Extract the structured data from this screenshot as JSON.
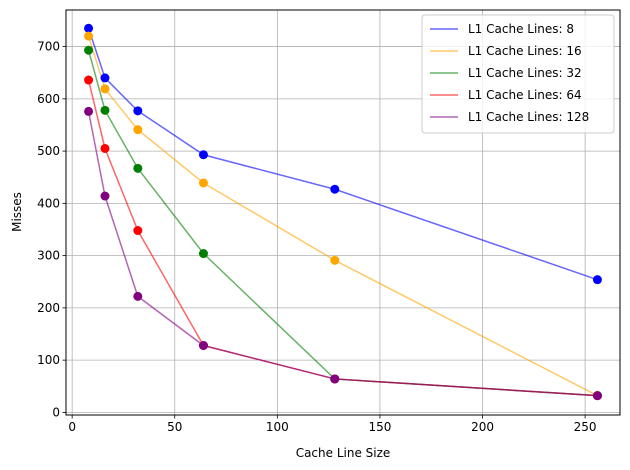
{
  "chart_data": {
    "type": "line",
    "title": "",
    "xlabel": "Cache Line Size",
    "ylabel": "Misses",
    "xlim": [
      -3,
      267
    ],
    "ylim": [
      -5,
      770
    ],
    "xticks": [
      0,
      50,
      100,
      150,
      200,
      250
    ],
    "yticks": [
      0,
      100,
      200,
      300,
      400,
      500,
      600,
      700
    ],
    "grid": true,
    "legend_position": "top-right",
    "x": [
      8,
      16,
      32,
      64,
      128,
      256
    ],
    "series": [
      {
        "name": "L1 Cache Lines: 8",
        "color": "#0000ff",
        "values": [
          735,
          640,
          577,
          493,
          427,
          254
        ]
      },
      {
        "name": "L1 Cache Lines: 16",
        "color": "#ffa500",
        "values": [
          720,
          619,
          541,
          439,
          291,
          32
        ]
      },
      {
        "name": "L1 Cache Lines: 32",
        "color": "#008000",
        "values": [
          693,
          578,
          467,
          304,
          64,
          32
        ]
      },
      {
        "name": "L1 Cache Lines: 64",
        "color": "#ff0000",
        "values": [
          636,
          505,
          348,
          128,
          64,
          32
        ]
      },
      {
        "name": "L1 Cache Lines: 128",
        "color": "#800080",
        "values": [
          576,
          414,
          222,
          128,
          64,
          32
        ]
      }
    ]
  }
}
